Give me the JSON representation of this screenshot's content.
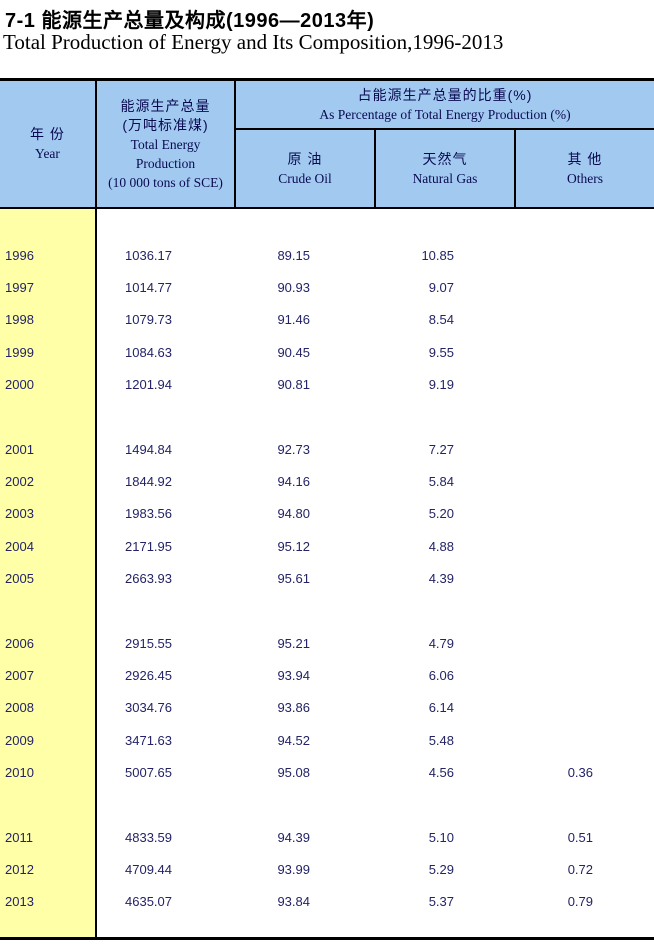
{
  "title": {
    "line1_zh": "7-1  能源生产总量及构成(1996—2013年)",
    "line2_en": "Total Production of Energy and Its Composition,1996-2013"
  },
  "colors": {
    "header_bg": "#a2caf1",
    "year_column_bg": "#ffffa8",
    "border": "#000000",
    "data_text": "#232366",
    "header_text": "#0a0a50"
  },
  "table": {
    "header": {
      "year_zh": "年 份",
      "year_en": "Year",
      "total_zh_1": "能源生产总量",
      "total_zh_2": "(万吨标准煤)",
      "total_en_1": "Total Energy",
      "total_en_2": "Production",
      "total_en_3": "(10 000 tons of SCE)",
      "pct_zh": "占能源生产总量的比重(%)",
      "pct_en": "As Percentage of Total Energy Production (%)",
      "crude_zh": "原 油",
      "crude_en": "Crude Oil",
      "gas_zh": "天然气",
      "gas_en": "Natural Gas",
      "others_zh": "其 他",
      "others_en": "Others"
    },
    "rows": [
      {
        "year": "1996",
        "total": "1036.17",
        "crude": "89.15",
        "gas": "10.85",
        "others": ""
      },
      {
        "year": "1997",
        "total": "1014.77",
        "crude": "90.93",
        "gas": "9.07",
        "others": ""
      },
      {
        "year": "1998",
        "total": "1079.73",
        "crude": "91.46",
        "gas": "8.54",
        "others": ""
      },
      {
        "year": "1999",
        "total": "1084.63",
        "crude": "90.45",
        "gas": "9.55",
        "others": ""
      },
      {
        "year": "2000",
        "total": "1201.94",
        "crude": "90.81",
        "gas": "9.19",
        "others": ""
      },
      {
        "year": "",
        "total": "",
        "crude": "",
        "gas": "",
        "others": ""
      },
      {
        "year": "2001",
        "total": "1494.84",
        "crude": "92.73",
        "gas": "7.27",
        "others": ""
      },
      {
        "year": "2002",
        "total": "1844.92",
        "crude": "94.16",
        "gas": "5.84",
        "others": ""
      },
      {
        "year": "2003",
        "total": "1983.56",
        "crude": "94.80",
        "gas": "5.20",
        "others": ""
      },
      {
        "year": "2004",
        "total": "2171.95",
        "crude": "95.12",
        "gas": "4.88",
        "others": ""
      },
      {
        "year": "2005",
        "total": "2663.93",
        "crude": "95.61",
        "gas": "4.39",
        "others": ""
      },
      {
        "year": "",
        "total": "",
        "crude": "",
        "gas": "",
        "others": ""
      },
      {
        "year": "2006",
        "total": "2915.55",
        "crude": "95.21",
        "gas": "4.79",
        "others": ""
      },
      {
        "year": "2007",
        "total": "2926.45",
        "crude": "93.94",
        "gas": "6.06",
        "others": ""
      },
      {
        "year": "2008",
        "total": "3034.76",
        "crude": "93.86",
        "gas": "6.14",
        "others": ""
      },
      {
        "year": "2009",
        "total": "3471.63",
        "crude": "94.52",
        "gas": "5.48",
        "others": ""
      },
      {
        "year": "2010",
        "total": "5007.65",
        "crude": "95.08",
        "gas": "4.56",
        "others": "0.36"
      },
      {
        "year": "",
        "total": "",
        "crude": "",
        "gas": "",
        "others": ""
      },
      {
        "year": "2011",
        "total": "4833.59",
        "crude": "94.39",
        "gas": "5.10",
        "others": "0.51"
      },
      {
        "year": "2012",
        "total": "4709.44",
        "crude": "93.99",
        "gas": "5.29",
        "others": "0.72"
      },
      {
        "year": "2013",
        "total": "4635.07",
        "crude": "93.84",
        "gas": "5.37",
        "others": "0.79"
      }
    ]
  }
}
